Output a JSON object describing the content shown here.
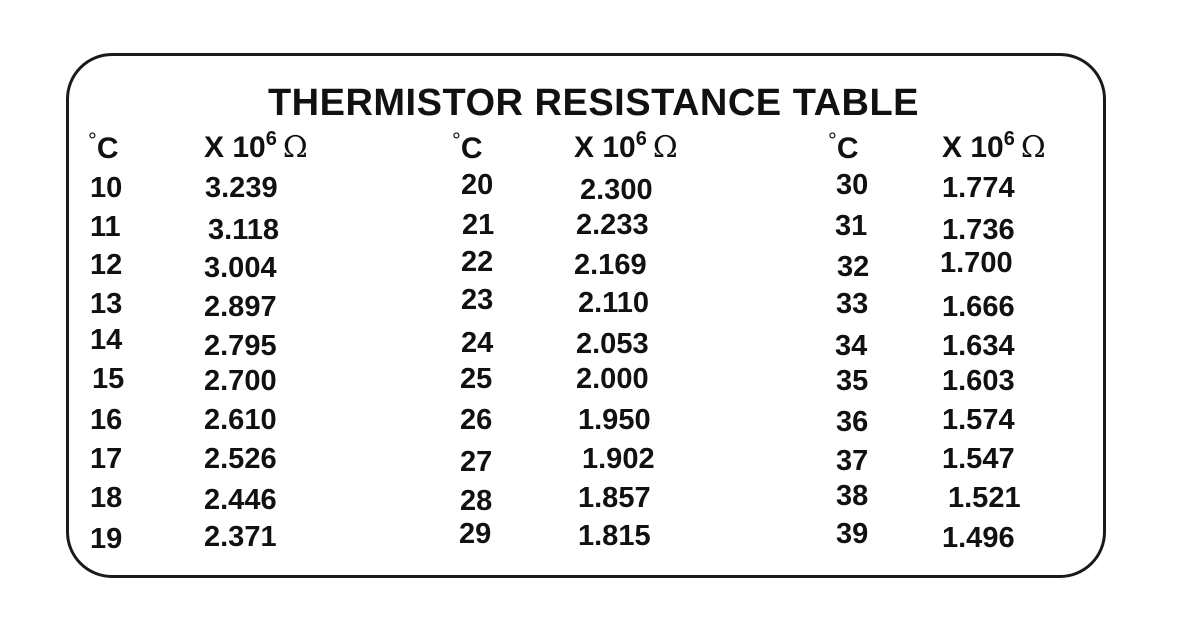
{
  "title": "THERMISTOR RESISTANCE TABLE",
  "header": {
    "degree_symbol": "°",
    "temp_unit": "C",
    "value_prefix": "X 10",
    "exponent": "6",
    "ohm_symbol": "Ω"
  },
  "columns": [
    {
      "rows": [
        {
          "temp": "10",
          "value": "3.239"
        },
        {
          "temp": "11",
          "value": "3.118"
        },
        {
          "temp": "12",
          "value": "3.004"
        },
        {
          "temp": "13",
          "value": "2.897"
        },
        {
          "temp": "14",
          "value": "2.795"
        },
        {
          "temp": "15",
          "value": "2.700"
        },
        {
          "temp": "16",
          "value": "2.610"
        },
        {
          "temp": "17",
          "value": "2.526"
        },
        {
          "temp": "18",
          "value": "2.446"
        },
        {
          "temp": "19",
          "value": "2.371"
        }
      ]
    },
    {
      "rows": [
        {
          "temp": "20",
          "value": "2.300"
        },
        {
          "temp": "21",
          "value": "2.233"
        },
        {
          "temp": "22",
          "value": "2.169"
        },
        {
          "temp": "23",
          "value": "2.110"
        },
        {
          "temp": "24",
          "value": "2.053"
        },
        {
          "temp": "25",
          "value": "2.000"
        },
        {
          "temp": "26",
          "value": "1.950"
        },
        {
          "temp": "27",
          "value": "1.902"
        },
        {
          "temp": "28",
          "value": "1.857"
        },
        {
          "temp": "29",
          "value": "1.815"
        }
      ]
    },
    {
      "rows": [
        {
          "temp": "30",
          "value": "1.774"
        },
        {
          "temp": "31",
          "value": "1.736"
        },
        {
          "temp": "32",
          "value": "1.700"
        },
        {
          "temp": "33",
          "value": "1.666"
        },
        {
          "temp": "34",
          "value": "1.634"
        },
        {
          "temp": "35",
          "value": "1.603"
        },
        {
          "temp": "36",
          "value": "1.574"
        },
        {
          "temp": "37",
          "value": "1.547"
        },
        {
          "temp": "38",
          "value": "1.521"
        },
        {
          "temp": "39",
          "value": "1.496"
        }
      ]
    }
  ]
}
